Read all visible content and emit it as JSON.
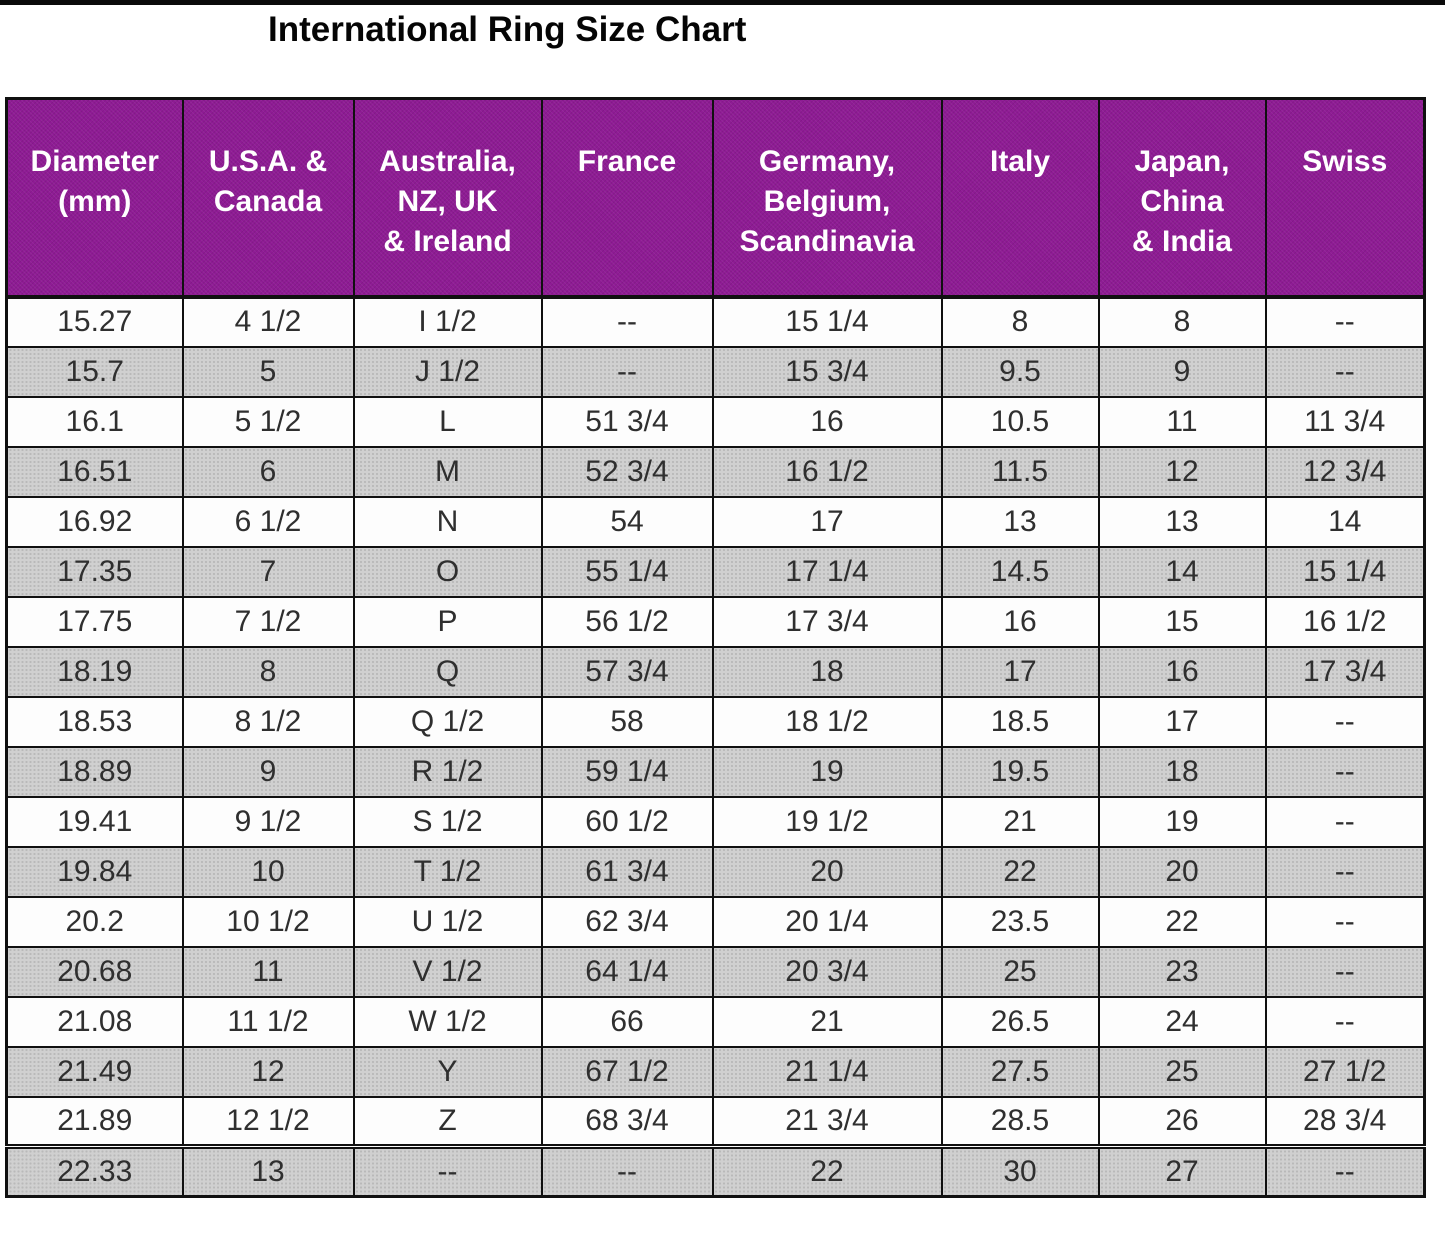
{
  "title": "International Ring Size Chart",
  "chart_data": {
    "type": "table",
    "title": "International Ring Size Chart",
    "columns": [
      "Diameter (mm)",
      "U.S.A. & Canada",
      "Australia, NZ, UK & Ireland",
      "France",
      "Germany, Belgium, Scandinavia",
      "Italy",
      "Japan, China & India",
      "Swiss"
    ],
    "column_header_lines": [
      [
        "Diameter",
        "(mm)"
      ],
      [
        "U.S.A. &",
        "Canada"
      ],
      [
        "Australia,",
        "NZ, UK",
        "& Ireland"
      ],
      [
        "France"
      ],
      [
        "Germany,",
        "Belgium,",
        "Scandinavia"
      ],
      [
        "Italy"
      ],
      [
        "Japan,",
        "China",
        "& India"
      ],
      [
        "Swiss"
      ]
    ],
    "rows": [
      [
        "15.27",
        "4 1/2",
        "I 1/2",
        "--",
        "15 1/4",
        "8",
        "8",
        "--"
      ],
      [
        "15.7",
        "5",
        "J 1/2",
        "--",
        "15 3/4",
        "9.5",
        "9",
        "--"
      ],
      [
        "16.1",
        "5 1/2",
        "L",
        "51 3/4",
        "16",
        "10.5",
        "11",
        "11 3/4"
      ],
      [
        "16.51",
        "6",
        "M",
        "52 3/4",
        "16 1/2",
        "11.5",
        "12",
        "12 3/4"
      ],
      [
        "16.92",
        "6 1/2",
        "N",
        "54",
        "17",
        "13",
        "13",
        "14"
      ],
      [
        "17.35",
        "7",
        "O",
        "55 1/4",
        "17 1/4",
        "14.5",
        "14",
        "15 1/4"
      ],
      [
        "17.75",
        "7 1/2",
        "P",
        "56 1/2",
        "17 3/4",
        "16",
        "15",
        "16 1/2"
      ],
      [
        "18.19",
        "8",
        "Q",
        "57 3/4",
        "18",
        "17",
        "16",
        "17 3/4"
      ],
      [
        "18.53",
        "8 1/2",
        "Q 1/2",
        "58",
        "18 1/2",
        "18.5",
        "17",
        "--"
      ],
      [
        "18.89",
        "9",
        "R 1/2",
        "59 1/4",
        "19",
        "19.5",
        "18",
        "--"
      ],
      [
        "19.41",
        "9 1/2",
        "S 1/2",
        "60 1/2",
        "19 1/2",
        "21",
        "19",
        "--"
      ],
      [
        "19.84",
        "10",
        "T 1/2",
        "61 3/4",
        "20",
        "22",
        "20",
        "--"
      ],
      [
        "20.2",
        "10 1/2",
        "U 1/2",
        "62 3/4",
        "20 1/4",
        "23.5",
        "22",
        "--"
      ],
      [
        "20.68",
        "11",
        "V 1/2",
        "64 1/4",
        "20 3/4",
        "25",
        "23",
        "--"
      ],
      [
        "21.08",
        "11 1/2",
        "W 1/2",
        "66",
        "21",
        "26.5",
        "24",
        "--"
      ],
      [
        "21.49",
        "12",
        "Y",
        "67 1/2",
        "21 1/4",
        "27.5",
        "25",
        "27 1/2"
      ],
      [
        "21.89",
        "12 1/2",
        "Z",
        "68 3/4",
        "21 3/4",
        "28.5",
        "26",
        "28 3/4"
      ],
      [
        "22.33",
        "13",
        "--",
        "--",
        "22",
        "30",
        "27",
        "--"
      ]
    ],
    "layout_hints": {
      "striping": "alternate rows shaded, first data row white",
      "header_position": "top",
      "grid": "on"
    },
    "colors": {
      "header_bg": "#8E1B94",
      "header_text": "#FFFFFF",
      "row_bg": "#FDFDFD",
      "row_alt_bg": "#D0D0D0",
      "border": "#101010",
      "cell_text": "#2F2F2F",
      "title_text": "#050505"
    }
  }
}
